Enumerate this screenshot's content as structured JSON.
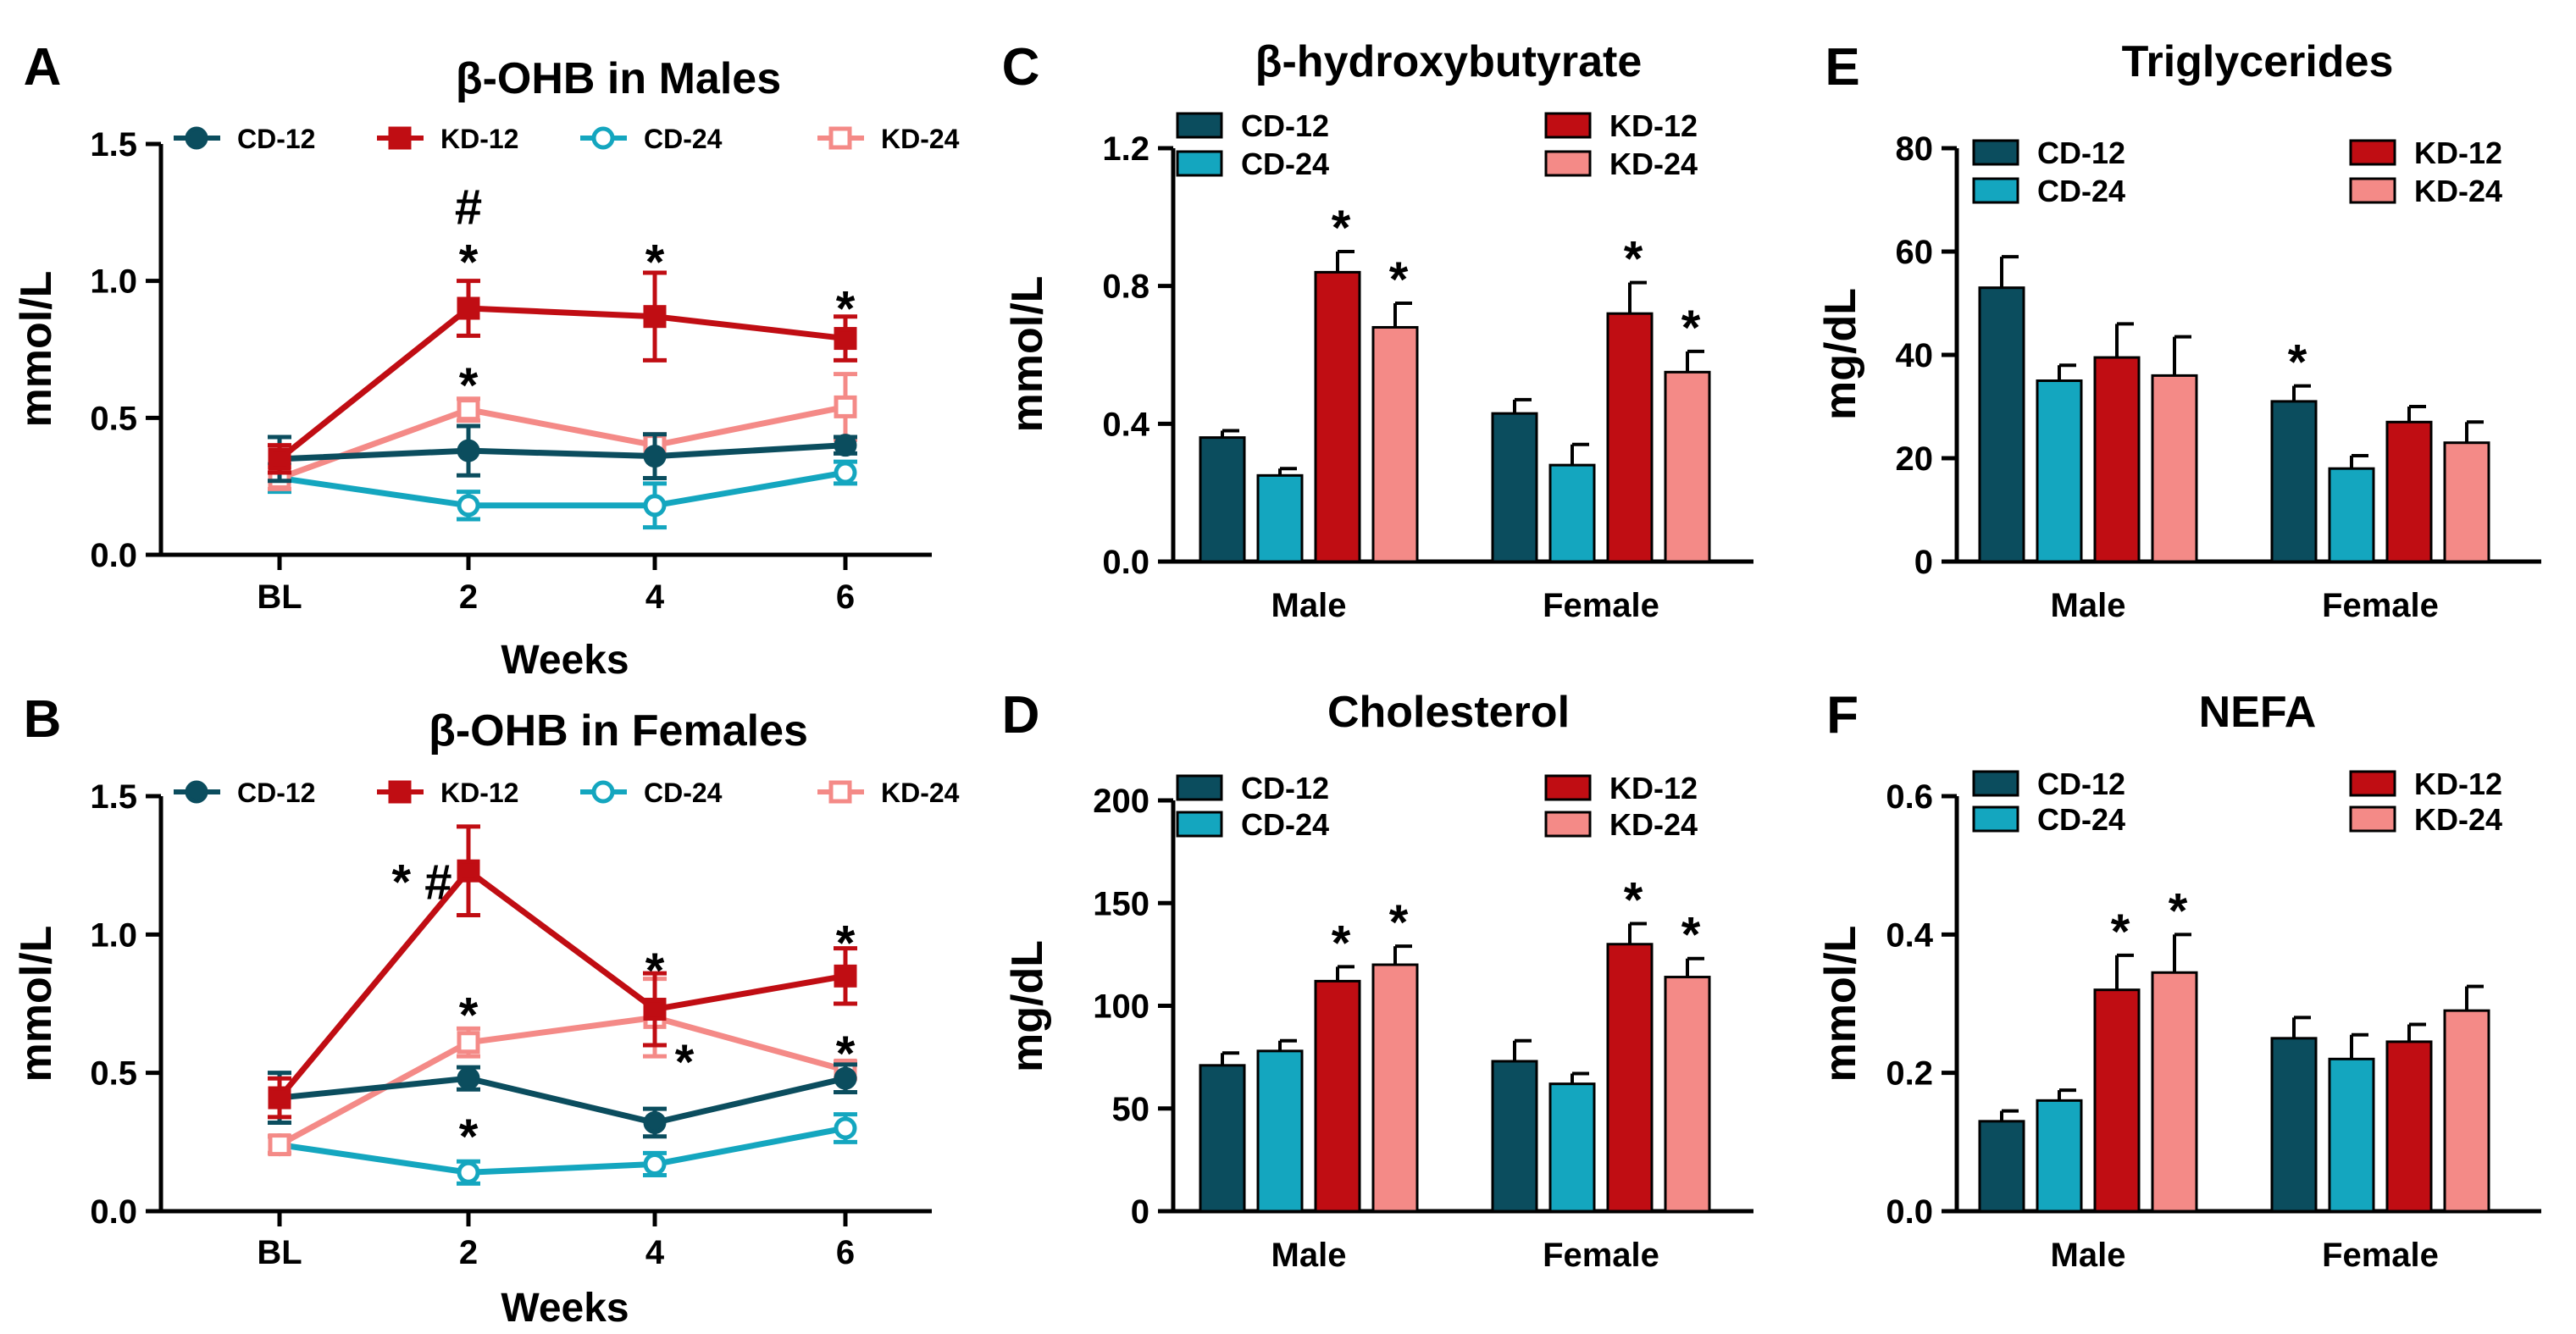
{
  "colors": {
    "CD-12": "#0b4d5e",
    "KD-12": "#c00d13",
    "CD-24": "#14a6bf",
    "KD-24": "#f48a87",
    "axis": "#000000"
  },
  "series_names": [
    "CD-12",
    "KD-12",
    "CD-24",
    "KD-24"
  ],
  "chart_data": [
    {
      "panel": "A",
      "type": "line",
      "title": "β-OHB in Males",
      "xlabel": "Weeks",
      "ylabel": "mmol/L",
      "x": [
        "BL",
        "2",
        "4",
        "6"
      ],
      "ylim": [
        0,
        1.5
      ],
      "yticks": [
        "0.0",
        "0.5",
        "1.0",
        "1.5"
      ],
      "legend": "top",
      "series": [
        {
          "name": "CD-12",
          "values": [
            0.35,
            0.38,
            0.36,
            0.4
          ],
          "err": [
            0.08,
            0.09,
            0.08,
            0.03
          ]
        },
        {
          "name": "KD-12",
          "values": [
            0.35,
            0.9,
            0.87,
            0.79
          ],
          "err": [
            0.05,
            0.1,
            0.16,
            0.08
          ]
        },
        {
          "name": "CD-24",
          "values": [
            0.28,
            0.18,
            0.18,
            0.3
          ],
          "err": [
            0.05,
            0.05,
            0.08,
            0.04
          ]
        },
        {
          "name": "KD-24",
          "values": [
            0.28,
            0.53,
            0.4,
            0.54
          ],
          "err": [
            0.04,
            0.04,
            0.04,
            0.12
          ]
        }
      ],
      "annotations": [
        {
          "x": "2",
          "y": 1.3,
          "text": "#"
        },
        {
          "x": "2",
          "y": 1.1,
          "text": "*"
        },
        {
          "x": "4",
          "y": 1.1,
          "text": "*"
        },
        {
          "x": "6",
          "y": 0.93,
          "text": "*"
        },
        {
          "x": "2",
          "y": 0.65,
          "text": "*"
        }
      ]
    },
    {
      "panel": "B",
      "type": "line",
      "title": "β-OHB in Females",
      "xlabel": "Weeks",
      "ylabel": "mmol/L",
      "x": [
        "BL",
        "2",
        "4",
        "6"
      ],
      "ylim": [
        0,
        1.5
      ],
      "yticks": [
        "0.0",
        "0.5",
        "1.0",
        "1.5"
      ],
      "legend": "top",
      "series": [
        {
          "name": "CD-12",
          "values": [
            0.41,
            0.48,
            0.32,
            0.48
          ],
          "err": [
            0.09,
            0.04,
            0.05,
            0.05
          ]
        },
        {
          "name": "KD-12",
          "values": [
            0.41,
            1.23,
            0.73,
            0.85
          ],
          "err": [
            0.07,
            0.16,
            0.13,
            0.1
          ]
        },
        {
          "name": "CD-24",
          "values": [
            0.24,
            0.14,
            0.17,
            0.3
          ],
          "err": [
            0.03,
            0.04,
            0.04,
            0.05
          ]
        },
        {
          "name": "KD-24",
          "values": [
            0.24,
            0.61,
            0.7,
            0.51
          ],
          "err": [
            0.03,
            0.05,
            0.14,
            0.03
          ]
        }
      ],
      "annotations": [
        {
          "x": "2",
          "y": 1.22,
          "text": "* #",
          "offset": "left"
        },
        {
          "x": "2",
          "y": 0.74,
          "text": "*"
        },
        {
          "x": "2",
          "y": 0.3,
          "text": "*"
        },
        {
          "x": "4",
          "y": 0.9,
          "text": "*"
        },
        {
          "x": "4",
          "y": 0.57,
          "text": "*",
          "offset": "right"
        },
        {
          "x": "6",
          "y": 1.0,
          "text": "*"
        },
        {
          "x": "6",
          "y": 0.6,
          "text": "*"
        }
      ]
    },
    {
      "panel": "C",
      "type": "bar",
      "title": "β-hydroxybutyrate",
      "ylabel": "mmol/L",
      "categories": [
        "Male",
        "Female"
      ],
      "ylim": [
        0,
        1.2
      ],
      "yticks": [
        "0.0",
        "0.4",
        "0.8",
        "1.2"
      ],
      "legend": "top",
      "series": [
        {
          "name": "CD-12",
          "values": [
            0.36,
            0.43
          ],
          "err": [
            0.02,
            0.04
          ],
          "sig": [
            false,
            false
          ]
        },
        {
          "name": "CD-24",
          "values": [
            0.25,
            0.28
          ],
          "err": [
            0.02,
            0.06
          ],
          "sig": [
            false,
            false
          ]
        },
        {
          "name": "KD-12",
          "values": [
            0.84,
            0.72
          ],
          "err": [
            0.06,
            0.09
          ],
          "sig": [
            true,
            true
          ]
        },
        {
          "name": "KD-24",
          "values": [
            0.68,
            0.55
          ],
          "err": [
            0.07,
            0.06
          ],
          "sig": [
            true,
            true
          ]
        }
      ]
    },
    {
      "panel": "D",
      "type": "bar",
      "title": "Cholesterol",
      "ylabel": "mg/dL",
      "categories": [
        "Male",
        "Female"
      ],
      "ylim": [
        0,
        200
      ],
      "yticks": [
        "0",
        "50",
        "100",
        "150",
        "200"
      ],
      "legend": "top",
      "series": [
        {
          "name": "CD-12",
          "values": [
            71,
            73
          ],
          "err": [
            6,
            10
          ],
          "sig": [
            false,
            false
          ]
        },
        {
          "name": "CD-24",
          "values": [
            78,
            62
          ],
          "err": [
            5,
            5
          ],
          "sig": [
            false,
            false
          ]
        },
        {
          "name": "KD-12",
          "values": [
            112,
            130
          ],
          "err": [
            7,
            10
          ],
          "sig": [
            true,
            true
          ]
        },
        {
          "name": "KD-24",
          "values": [
            120,
            114
          ],
          "err": [
            9,
            9
          ],
          "sig": [
            true,
            true
          ]
        }
      ]
    },
    {
      "panel": "E",
      "type": "bar",
      "title": "Triglycerides",
      "ylabel": "mg/dL",
      "categories": [
        "Male",
        "Female"
      ],
      "ylim": [
        0,
        80
      ],
      "yticks": [
        "0",
        "20",
        "40",
        "60",
        "80"
      ],
      "legend": "top",
      "series": [
        {
          "name": "CD-12",
          "values": [
            53,
            31
          ],
          "err": [
            6,
            3
          ],
          "sig": [
            false,
            true
          ]
        },
        {
          "name": "CD-24",
          "values": [
            35,
            18
          ],
          "err": [
            3,
            2.5
          ],
          "sig": [
            false,
            false
          ]
        },
        {
          "name": "KD-12",
          "values": [
            39.5,
            27
          ],
          "err": [
            6.5,
            3
          ],
          "sig": [
            false,
            false
          ]
        },
        {
          "name": "KD-24",
          "values": [
            36,
            23
          ],
          "err": [
            7.5,
            4
          ],
          "sig": [
            false,
            false
          ]
        }
      ]
    },
    {
      "panel": "F",
      "type": "bar",
      "title": "NEFA",
      "ylabel": "mmol/L",
      "categories": [
        "Male",
        "Female"
      ],
      "ylim": [
        0,
        0.6
      ],
      "yticks": [
        "0.0",
        "0.2",
        "0.4",
        "0.6"
      ],
      "legend": "top",
      "series": [
        {
          "name": "CD-12",
          "values": [
            0.13,
            0.25
          ],
          "err": [
            0.015,
            0.03
          ],
          "sig": [
            false,
            false
          ]
        },
        {
          "name": "CD-24",
          "values": [
            0.16,
            0.22
          ],
          "err": [
            0.015,
            0.035
          ],
          "sig": [
            false,
            false
          ]
        },
        {
          "name": "KD-12",
          "values": [
            0.32,
            0.245
          ],
          "err": [
            0.05,
            0.025
          ],
          "sig": [
            true,
            false
          ]
        },
        {
          "name": "KD-24",
          "values": [
            0.345,
            0.29
          ],
          "err": [
            0.055,
            0.035
          ],
          "sig": [
            true,
            false
          ]
        }
      ]
    }
  ]
}
